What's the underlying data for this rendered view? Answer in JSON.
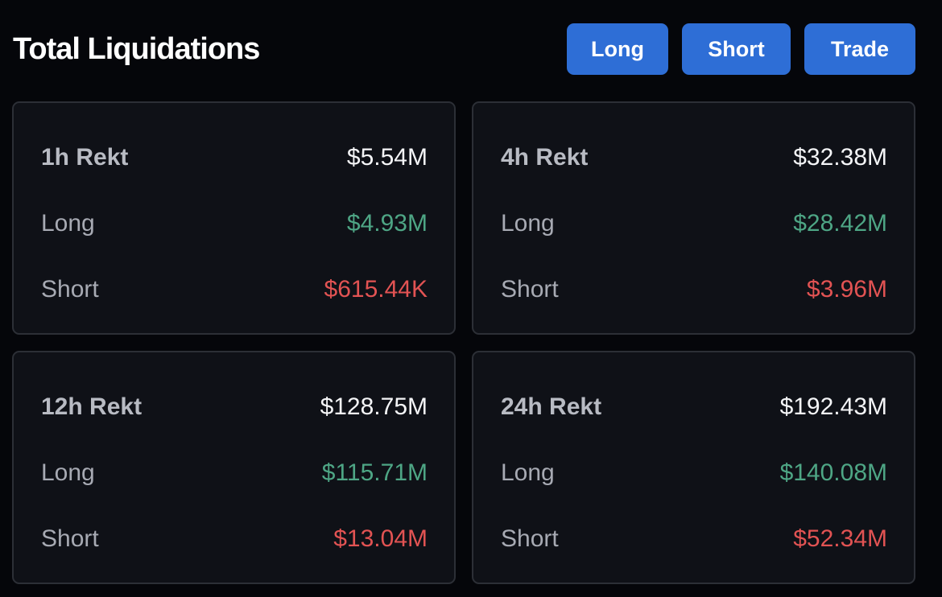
{
  "header": {
    "title": "Total Liquidations",
    "buttons": {
      "long": "Long",
      "short": "Short",
      "trade": "Trade"
    }
  },
  "colors": {
    "background": "#05060a",
    "card": "#0f1117",
    "button": "#2e6ed6",
    "long": "#4ea685",
    "short": "#e25353"
  },
  "cards": [
    {
      "title": "1h Rekt",
      "total": "$5.54M",
      "long_label": "Long",
      "long_value": "$4.93M",
      "short_label": "Short",
      "short_value": "$615.44K"
    },
    {
      "title": "4h Rekt",
      "total": "$32.38M",
      "long_label": "Long",
      "long_value": "$28.42M",
      "short_label": "Short",
      "short_value": "$3.96M"
    },
    {
      "title": "12h Rekt",
      "total": "$128.75M",
      "long_label": "Long",
      "long_value": "$115.71M",
      "short_label": "Short",
      "short_value": "$13.04M"
    },
    {
      "title": "24h Rekt",
      "total": "$192.43M",
      "long_label": "Long",
      "long_value": "$140.08M",
      "short_label": "Short",
      "short_value": "$52.34M"
    }
  ]
}
